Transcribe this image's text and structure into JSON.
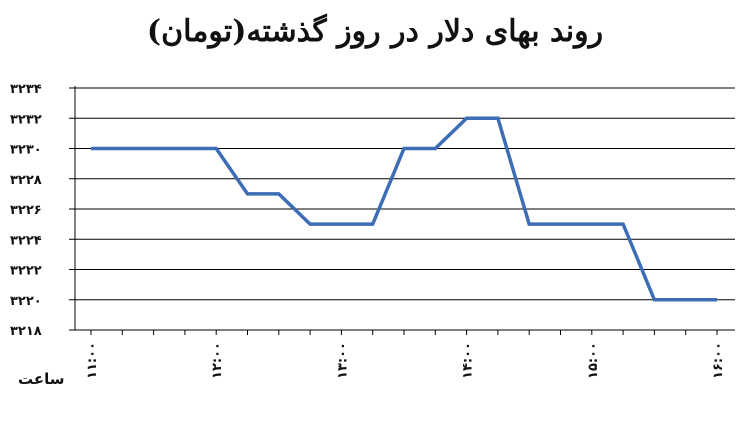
{
  "chart_data": {
    "type": "line",
    "title": "روند بهای دلار در روز گذشته(تومان)",
    "xlabel": "ساعت",
    "ylabel": "",
    "ylim": [
      3218,
      3234
    ],
    "yticks": [
      "۳۲۱۸",
      "۳۲۲۰",
      "۳۲۲۲",
      "۳۲۲۴",
      "۳۲۲۶",
      "۳۲۲۸",
      "۳۲۳۰",
      "۳۲۳۲",
      "۳۲۳۴"
    ],
    "ytick_values": [
      3218,
      3220,
      3222,
      3224,
      3226,
      3228,
      3230,
      3232,
      3234
    ],
    "xticks": [
      "۱۱:۰۰",
      "۱۲:۰۰",
      "۱۳:۰۰",
      "۱۴:۰۰",
      "۱۵:۰۰",
      "۱۶:۰۰"
    ],
    "xtick_hours": [
      11,
      12,
      13,
      14,
      15,
      16
    ],
    "grid": true,
    "line_color": "#3d6db4",
    "series": [
      {
        "x": [
          11.0,
          12.0,
          12.25,
          12.5,
          12.75,
          13.0,
          13.25,
          13.5,
          13.75,
          14.0,
          14.25,
          14.5,
          14.75,
          15.0,
          15.25,
          15.5,
          15.75,
          16.0
        ],
        "values": [
          3230,
          3230,
          3227,
          3227,
          3225,
          3225,
          3225,
          3230,
          3230,
          3232,
          3232,
          3225,
          3225,
          3225,
          3225,
          3220,
          3220,
          3220
        ]
      }
    ]
  }
}
